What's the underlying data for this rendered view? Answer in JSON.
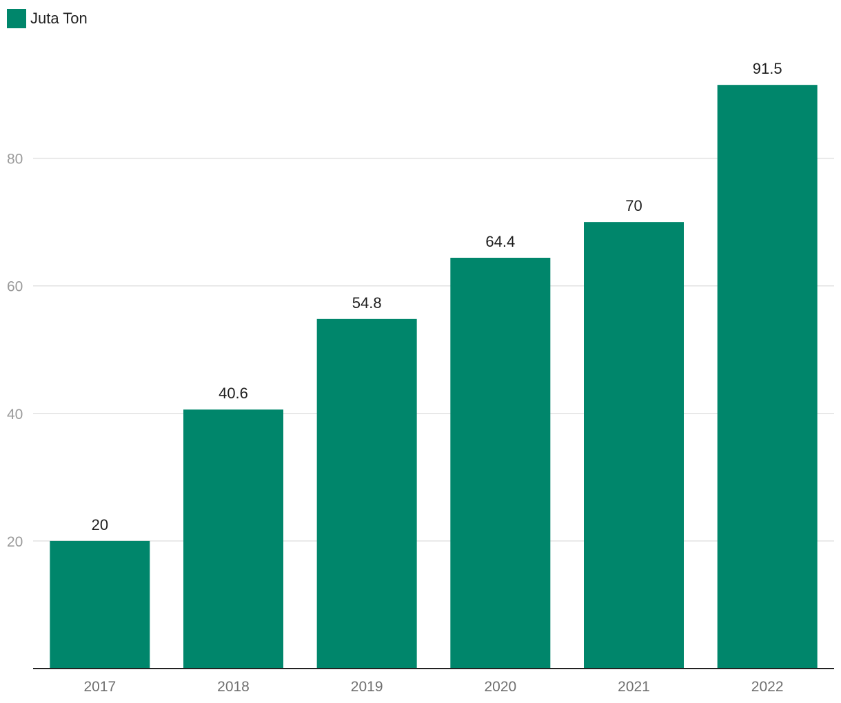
{
  "legend": {
    "label": "Juta Ton"
  },
  "chart_data": {
    "type": "bar",
    "categories": [
      "2017",
      "2018",
      "2019",
      "2020",
      "2021",
      "2022"
    ],
    "series": [
      {
        "name": "Juta Ton",
        "values": [
          20,
          40.6,
          54.8,
          64.4,
          70,
          91.5
        ],
        "color": "#00866b"
      }
    ],
    "data_labels": [
      "20",
      "40.6",
      "54.8",
      "64.4",
      "70",
      "91.5"
    ],
    "yticks": [
      20,
      40,
      60,
      80
    ],
    "ylim": [
      0,
      100
    ],
    "grid": true,
    "legend_position": "top-left",
    "title": "",
    "xlabel": "",
    "ylabel": ""
  }
}
